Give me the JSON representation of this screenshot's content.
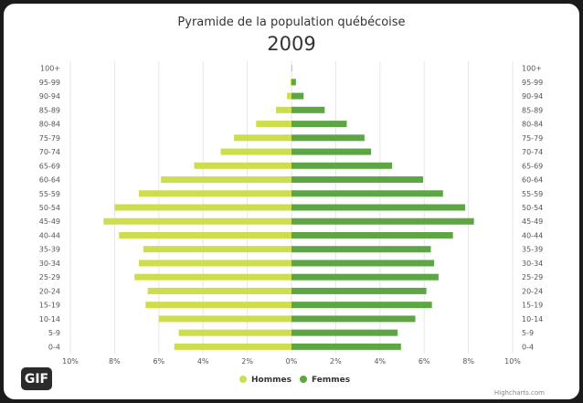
{
  "badge": "GIF",
  "credits": "Highcharts.com",
  "colors": {
    "hommes": "#cddd4b",
    "femmes": "#5ea544",
    "grid": "#e6e6e6"
  },
  "chart_data": {
    "type": "bar",
    "title": "Pyramide de la population québécoise",
    "subtitle": "2009",
    "categories": [
      "0-4",
      "5-9",
      "10-14",
      "15-19",
      "20-24",
      "25-29",
      "30-34",
      "35-39",
      "40-44",
      "45-49",
      "50-54",
      "55-59",
      "60-64",
      "65-69",
      "70-74",
      "75-79",
      "80-84",
      "85-89",
      "90-94",
      "95-99",
      "100+"
    ],
    "series": [
      {
        "name": "Hommes",
        "values": [
          5.3,
          5.1,
          6.0,
          6.6,
          6.5,
          7.1,
          6.9,
          6.7,
          7.8,
          8.5,
          8.0,
          6.9,
          5.9,
          4.4,
          3.2,
          2.6,
          1.6,
          0.7,
          0.2,
          0.05,
          0.0
        ]
      },
      {
        "name": "Femmes",
        "values": [
          4.95,
          4.8,
          5.6,
          6.35,
          6.1,
          6.65,
          6.45,
          6.3,
          7.3,
          8.25,
          7.85,
          6.85,
          5.95,
          4.55,
          3.6,
          3.3,
          2.5,
          1.5,
          0.55,
          0.2,
          0.02
        ]
      }
    ],
    "x_ticks": [
      "10%",
      "8%",
      "6%",
      "4%",
      "2%",
      "0%",
      "2%",
      "4%",
      "6%",
      "8%",
      "10%"
    ],
    "xlim": [
      -10,
      10
    ],
    "grid": true,
    "legend": "bottom-center"
  }
}
